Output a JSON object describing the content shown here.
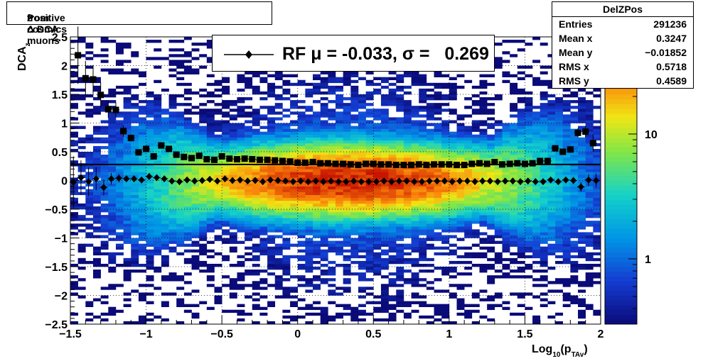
{
  "title": {
    "main": "Positive Δ DCA",
    "sub": "z",
    "rest": " from cosmics muons"
  },
  "stats": {
    "name": "DelZPos",
    "rows": [
      {
        "k": "Entries",
        "v": "291236"
      },
      {
        "k": "Mean x",
        "v": "0.3247"
      },
      {
        "k": "Mean y",
        "v": "−0.01852"
      },
      {
        "k": "RMS x",
        "v": "0.5718"
      },
      {
        "k": "RMS y",
        "v": "0.4589"
      }
    ]
  },
  "legend": {
    "text": "RF μ = -0.033, σ =   0.269"
  },
  "axes": {
    "ylabel": {
      "main": "DCA",
      "sub": "z"
    },
    "xlabel": {
      "main": "Log",
      "sub1": "10",
      "mid": "(p",
      "sub2": "TAv",
      "end": ")"
    }
  },
  "chart_data": {
    "type": "heatmap",
    "xlim": [
      -1.5,
      2
    ],
    "ylim": [
      -2.5,
      2.5
    ],
    "x_ticks": [
      "−1.5",
      "−1",
      "−0.5",
      "0",
      "0.5",
      "1",
      "1.5",
      "2"
    ],
    "x_tick_values": [
      -1.5,
      -1,
      -0.5,
      0,
      0.5,
      1,
      1.5,
      2
    ],
    "y_ticks": [
      "−2.5",
      "−2",
      "−1.5",
      "−1",
      "−0.5",
      "0",
      "0.5",
      "1",
      "1.5",
      "2",
      "2.5"
    ],
    "y_tick_values": [
      -2.5,
      -2,
      -1.5,
      -1,
      -0.5,
      0,
      0.5,
      1,
      1.5,
      2,
      2.5
    ],
    "z_scale": "log",
    "z_ticks": [
      "1",
      "10"
    ],
    "z_tick_values": [
      1,
      10
    ],
    "zlim": [
      0.3,
      60
    ],
    "grid": true,
    "colors": {
      "background": "#ffffff",
      "points": "#000000",
      "hline": "#000000"
    },
    "hline_y": 0.28,
    "series": [
      {
        "name": "sigma",
        "marker": "square",
        "x": [
          -1.45,
          -1.4,
          -1.35,
          -1.3,
          -1.25,
          -1.2,
          -1.15,
          -1.1,
          -1.05,
          -1.0,
          -0.95,
          -0.9,
          -0.85,
          -0.8,
          -0.75,
          -0.7,
          -0.65,
          -0.6,
          -0.55,
          -0.5,
          -0.45,
          -0.4,
          -0.35,
          -0.3,
          -0.25,
          -0.2,
          -0.15,
          -0.1,
          -0.05,
          0.0,
          0.05,
          0.1,
          0.15,
          0.2,
          0.25,
          0.3,
          0.35,
          0.4,
          0.45,
          0.5,
          0.55,
          0.6,
          0.65,
          0.7,
          0.75,
          0.8,
          0.85,
          0.9,
          0.95,
          1.0,
          1.05,
          1.1,
          1.15,
          1.2,
          1.25,
          1.3,
          1.35,
          1.4,
          1.45,
          1.5,
          1.55,
          1.6,
          1.65,
          1.7,
          1.75,
          1.8,
          1.85,
          1.9,
          1.95
        ],
        "y": [
          2.18,
          1.78,
          1.76,
          1.49,
          1.24,
          1.23,
          0.86,
          0.74,
          0.49,
          0.55,
          0.42,
          0.61,
          0.55,
          0.45,
          0.41,
          0.39,
          0.43,
          0.37,
          0.36,
          0.42,
          0.38,
          0.37,
          0.38,
          0.37,
          0.36,
          0.36,
          0.35,
          0.34,
          0.33,
          0.31,
          0.31,
          0.32,
          0.3,
          0.3,
          0.29,
          0.29,
          0.28,
          0.27,
          0.29,
          0.29,
          0.28,
          0.28,
          0.27,
          0.27,
          0.27,
          0.28,
          0.27,
          0.28,
          0.28,
          0.28,
          0.27,
          0.27,
          0.29,
          0.3,
          0.29,
          0.32,
          0.28,
          0.29,
          0.3,
          0.29,
          0.3,
          0.34,
          0.34,
          0.56,
          0.5,
          0.54,
          0.83,
          0.85,
          0.65
        ],
        "yerr": [
          0.5,
          0.3,
          0.25,
          0.22,
          0.15,
          0.13,
          0.1,
          0.06,
          0.05,
          0.04,
          0.04,
          0.04,
          0.03,
          0.03,
          0.02,
          0.02,
          0.02,
          0.02,
          0.02,
          0.02,
          0.02,
          0.01,
          0.01,
          0.01,
          0.01,
          0.01,
          0.01,
          0.01,
          0.01,
          0.01,
          0.01,
          0.01,
          0.01,
          0.01,
          0.01,
          0.01,
          0.01,
          0.01,
          0.01,
          0.01,
          0.01,
          0.01,
          0.01,
          0.01,
          0.01,
          0.01,
          0.01,
          0.01,
          0.01,
          0.01,
          0.01,
          0.01,
          0.01,
          0.01,
          0.01,
          0.01,
          0.01,
          0.02,
          0.02,
          0.02,
          0.02,
          0.02,
          0.03,
          0.04,
          0.05,
          0.06,
          0.08,
          0.1,
          0.15
        ]
      },
      {
        "name": "RF μ = -0.033, σ =   0.269",
        "marker": "diamond",
        "x": [
          -1.48,
          -1.43,
          -1.38,
          -1.33,
          -1.28,
          -1.23,
          -1.18,
          -1.13,
          -1.08,
          -1.03,
          -0.98,
          -0.93,
          -0.88,
          -0.83,
          -0.78,
          -0.73,
          -0.68,
          -0.63,
          -0.58,
          -0.53,
          -0.48,
          -0.43,
          -0.38,
          -0.33,
          -0.28,
          -0.23,
          -0.18,
          -0.13,
          -0.08,
          -0.03,
          0.02,
          0.07,
          0.12,
          0.17,
          0.22,
          0.27,
          0.32,
          0.37,
          0.42,
          0.47,
          0.52,
          0.57,
          0.62,
          0.67,
          0.72,
          0.77,
          0.82,
          0.87,
          0.92,
          0.97,
          1.02,
          1.07,
          1.12,
          1.17,
          1.22,
          1.27,
          1.32,
          1.37,
          1.42,
          1.47,
          1.52,
          1.57,
          1.62,
          1.67,
          1.72,
          1.77,
          1.82,
          1.87,
          1.92,
          1.97
        ],
        "y": [
          -0.03,
          0.05,
          -0.02,
          0.03,
          -0.12,
          0.03,
          0.04,
          0.03,
          0.03,
          0.01,
          0.07,
          0.05,
          0.03,
          -0.01,
          -0.02,
          0.01,
          -0.01,
          0.0,
          0.02,
          -0.01,
          0.03,
          0.0,
          0.01,
          -0.01,
          0.0,
          -0.02,
          0.01,
          0.0,
          -0.01,
          -0.02,
          -0.01,
          -0.02,
          -0.01,
          -0.02,
          -0.01,
          -0.02,
          -0.02,
          -0.01,
          -0.02,
          -0.02,
          -0.02,
          -0.01,
          -0.02,
          -0.01,
          -0.01,
          -0.02,
          -0.02,
          -0.01,
          -0.01,
          -0.01,
          -0.02,
          -0.01,
          -0.01,
          -0.02,
          -0.01,
          -0.01,
          -0.02,
          -0.01,
          -0.01,
          -0.02,
          -0.01,
          -0.02,
          -0.02,
          0.01,
          -0.02,
          0.01,
          0.0,
          -0.11,
          0.01,
          0.0
        ],
        "yerr": [
          0.45,
          0.3,
          0.25,
          0.2,
          0.14,
          0.1,
          0.07,
          0.05,
          0.04,
          0.03,
          0.03,
          0.02,
          0.02,
          0.02,
          0.01,
          0.01,
          0.01,
          0.01,
          0.01,
          0.01,
          0.01,
          0.01,
          0.01,
          0.01,
          0.01,
          0.01,
          0.01,
          0.01,
          0.01,
          0.01,
          0.01,
          0.01,
          0.01,
          0.01,
          0.01,
          0.01,
          0.01,
          0.01,
          0.01,
          0.01,
          0.01,
          0.01,
          0.01,
          0.01,
          0.01,
          0.01,
          0.01,
          0.01,
          0.01,
          0.01,
          0.01,
          0.01,
          0.01,
          0.01,
          0.01,
          0.01,
          0.01,
          0.01,
          0.01,
          0.01,
          0.01,
          0.01,
          0.02,
          0.02,
          0.03,
          0.04,
          0.06,
          0.08,
          0.1,
          0.12
        ]
      }
    ]
  }
}
